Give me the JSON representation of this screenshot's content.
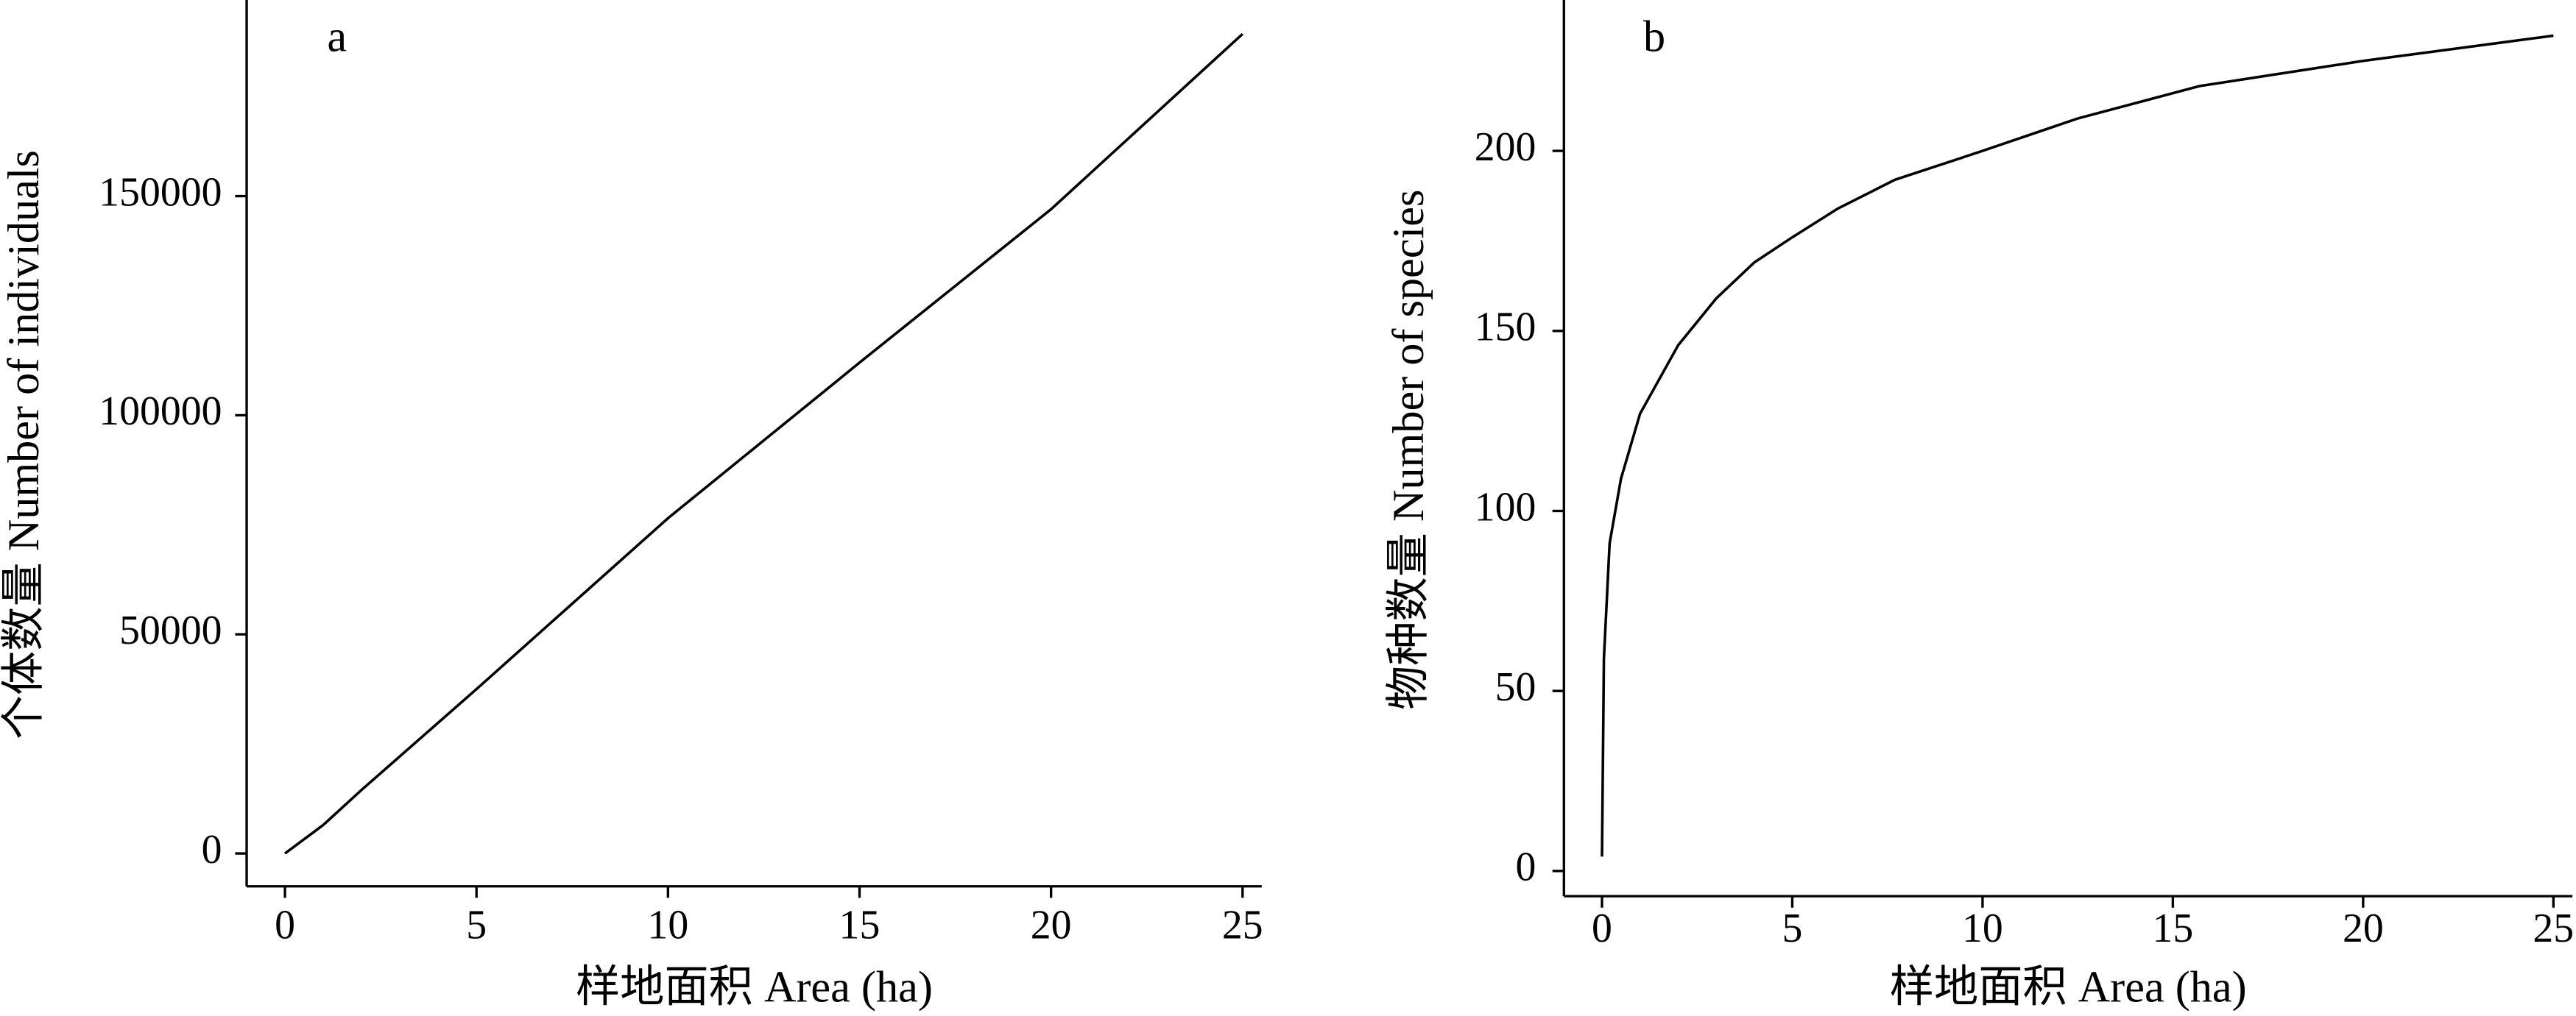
{
  "chart_data": [
    {
      "type": "line",
      "panel_label": "a",
      "x_label": "样地面积 Area (ha)",
      "y_label": "个体数量 Number of individuals",
      "x": [
        0,
        1,
        2,
        5,
        10,
        15,
        20,
        25
      ],
      "values": [
        0,
        6500,
        14500,
        37500,
        76500,
        112000,
        147000,
        187000
      ],
      "color": "#000000",
      "xlim": [
        -1,
        25.5
      ],
      "xticks": [
        0,
        5,
        10,
        15,
        20,
        25
      ],
      "ylim": [
        -7500,
        194000
      ],
      "yticks": [
        0,
        50000,
        100000,
        150000
      ]
    },
    {
      "type": "line",
      "panel_label": "b",
      "x_label": "样地面积 Area (ha)",
      "y_label": "物种数量 Number of species",
      "x": [
        0,
        0.05,
        0.2,
        0.5,
        1,
        2,
        3,
        4,
        5,
        6.2,
        7.7,
        10,
        12.5,
        15.7,
        20,
        25
      ],
      "values": [
        4,
        59,
        91,
        109,
        127,
        146,
        159,
        169,
        176,
        184,
        192,
        200,
        209,
        218,
        225,
        232
      ],
      "color": "#000000",
      "xlim": [
        -1,
        25.5
      ],
      "xticks": [
        0,
        5,
        10,
        15,
        20,
        25
      ],
      "ylim": [
        -7,
        241
      ],
      "yticks": [
        0,
        50,
        100,
        150,
        200
      ]
    }
  ]
}
